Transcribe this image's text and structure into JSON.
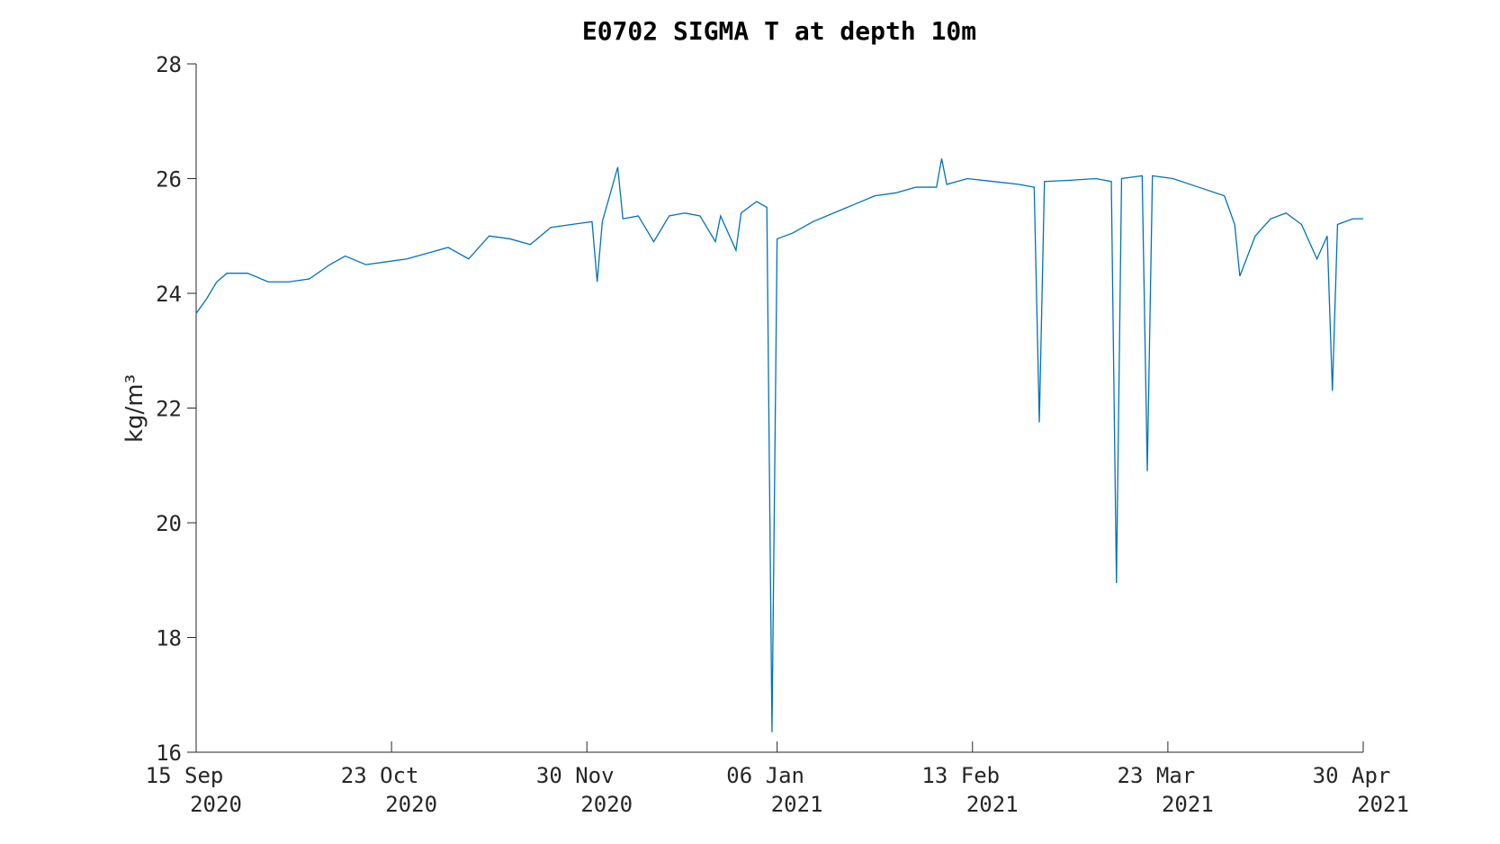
{
  "chart_data": {
    "type": "line",
    "title": "E0702 SIGMA T at depth 10m",
    "ylabel": "kg/m³",
    "x": [
      "2020-09-15",
      "2020-09-17",
      "2020-09-19",
      "2020-09-21",
      "2020-09-25",
      "2020-09-29",
      "2020-10-03",
      "2020-10-07",
      "2020-10-11",
      "2020-10-14",
      "2020-10-18",
      "2020-10-22",
      "2020-10-26",
      "2020-10-30",
      "2020-11-03",
      "2020-11-07",
      "2020-11-11",
      "2020-11-15",
      "2020-11-19",
      "2020-11-23",
      "2020-11-27",
      "2020-12-01",
      "2020-12-02",
      "2020-12-03",
      "2020-12-06",
      "2020-12-07",
      "2020-12-10",
      "2020-12-13",
      "2020-12-16",
      "2020-12-19",
      "2020-12-22",
      "2020-12-25",
      "2020-12-26",
      "2020-12-29",
      "2020-12-30",
      "2021-01-02",
      "2021-01-04",
      "2021-01-05",
      "2021-01-06",
      "2021-01-09",
      "2021-01-13",
      "2021-01-17",
      "2021-01-21",
      "2021-01-25",
      "2021-01-29",
      "2021-02-02",
      "2021-02-06",
      "2021-02-07",
      "2021-02-08",
      "2021-02-12",
      "2021-02-17",
      "2021-02-22",
      "2021-02-25",
      "2021-02-26",
      "2021-02-27",
      "2021-03-04",
      "2021-03-09",
      "2021-03-12",
      "2021-03-13",
      "2021-03-14",
      "2021-03-18",
      "2021-03-19",
      "2021-03-20",
      "2021-03-24",
      "2021-03-29",
      "2021-04-03",
      "2021-04-05",
      "2021-04-06",
      "2021-04-09",
      "2021-04-12",
      "2021-04-15",
      "2021-04-18",
      "2021-04-21",
      "2021-04-23",
      "2021-04-24",
      "2021-04-25",
      "2021-04-28",
      "2021-04-30"
    ],
    "series": [
      {
        "name": "sigma-t",
        "color": "#0072bd",
        "values": [
          23.65,
          23.9,
          24.2,
          24.35,
          24.35,
          24.2,
          24.2,
          24.25,
          24.5,
          24.65,
          24.5,
          24.55,
          24.6,
          24.7,
          24.8,
          24.6,
          25.0,
          24.95,
          24.85,
          25.15,
          25.2,
          25.25,
          24.2,
          25.25,
          26.2,
          25.3,
          25.35,
          24.9,
          25.35,
          25.4,
          25.35,
          24.9,
          25.35,
          24.75,
          25.4,
          25.6,
          25.5,
          16.35,
          24.95,
          25.05,
          25.25,
          25.4,
          25.55,
          25.7,
          25.75,
          25.85,
          25.85,
          26.35,
          25.9,
          26.0,
          25.95,
          25.9,
          25.85,
          21.75,
          25.95,
          25.97,
          26.0,
          25.95,
          18.95,
          26.0,
          26.05,
          20.9,
          26.05,
          26.0,
          25.85,
          25.7,
          25.2,
          24.3,
          25.0,
          25.3,
          25.4,
          25.2,
          24.6,
          25.0,
          22.3,
          25.2,
          25.3,
          25.3
        ]
      }
    ],
    "xlim": [
      "2020-09-15",
      "2021-04-30"
    ],
    "xticks": [
      {
        "value": "2020-09-15",
        "label": "15 Sep\n2020"
      },
      {
        "value": "2020-10-23",
        "label": "23 Oct\n2020"
      },
      {
        "value": "2020-11-30",
        "label": "30 Nov\n2020"
      },
      {
        "value": "2021-01-06",
        "label": "06 Jan\n2021"
      },
      {
        "value": "2021-02-13",
        "label": "13 Feb\n2021"
      },
      {
        "value": "2021-03-23",
        "label": "23 Mar\n2021"
      },
      {
        "value": "2021-04-30",
        "label": "30 Apr\n2021"
      }
    ],
    "ylim": [
      16,
      28
    ],
    "yticks": [
      16,
      18,
      20,
      22,
      24,
      26,
      28
    ]
  }
}
